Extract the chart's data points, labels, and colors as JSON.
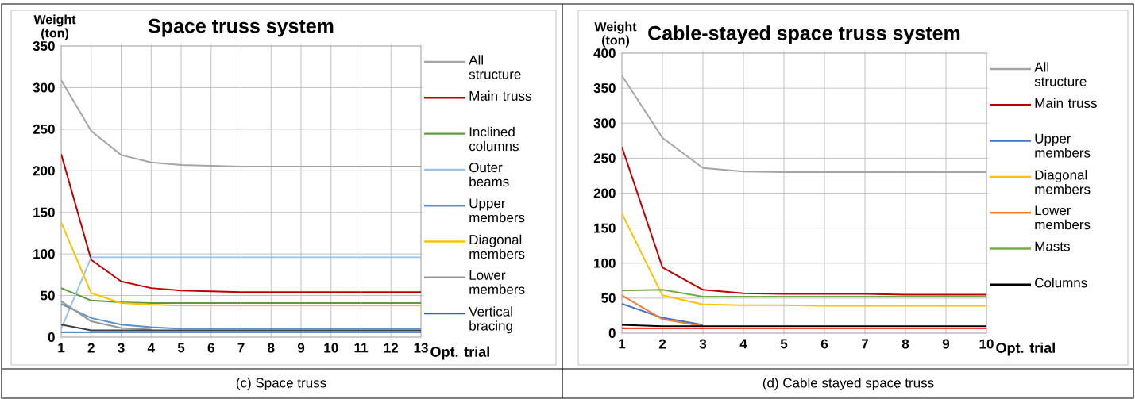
{
  "chart_data": [
    {
      "type": "line",
      "title": "Space truss system",
      "xlabel": "Opt. trial",
      "ylabel": "Weight (ton)",
      "annotations": [
        "(c) Space truss"
      ],
      "x": [
        1,
        2,
        3,
        4,
        5,
        6,
        7,
        8,
        9,
        10,
        11,
        12,
        13
      ],
      "xlim": [
        1,
        13
      ],
      "xticks": [
        1,
        2,
        3,
        4,
        5,
        6,
        7,
        8,
        9,
        10,
        11,
        12,
        13
      ],
      "ylim": [
        0,
        350
      ],
      "yticks": [
        0,
        50,
        100,
        150,
        200,
        250,
        300,
        350
      ],
      "grid": true,
      "legend": "right",
      "marker": "none",
      "line_style": "solid",
      "series": [
        {
          "name": "All structure",
          "color": "#a5a5a5",
          "values": [
            309,
            248,
            219,
            210,
            207,
            206,
            205,
            205,
            205,
            205,
            205,
            205,
            205
          ]
        },
        {
          "name": "Main truss",
          "color": "#c00000",
          "values": [
            220,
            93,
            67,
            59,
            56,
            55,
            54,
            54,
            54,
            54,
            54,
            54,
            54
          ]
        },
        {
          "name": "Inclined columns",
          "color": "#5b9b3b",
          "values": [
            59,
            44,
            42,
            41,
            41,
            41,
            41,
            41,
            41,
            41,
            41,
            41,
            41
          ]
        },
        {
          "name": "Outer beams",
          "color": "#9dc3e6",
          "values": [
            10,
            96,
            96,
            96,
            96,
            96,
            96,
            96,
            96,
            96,
            96,
            96,
            96
          ]
        },
        {
          "name": "Upper members",
          "color": "#5b8fc8",
          "values": [
            40,
            23,
            15,
            12,
            10,
            10,
            10,
            10,
            10,
            10,
            10,
            10,
            10
          ]
        },
        {
          "name": "Diagonal members",
          "color": "#ffc000",
          "values": [
            138,
            53,
            41,
            39,
            38,
            38,
            38,
            38,
            38,
            38,
            38,
            38,
            38
          ]
        },
        {
          "name": "Lower members",
          "color": "#969696",
          "values": [
            43,
            19,
            11,
            9,
            null,
            null,
            null,
            null,
            null,
            null,
            null,
            null,
            null
          ]
        },
        {
          "name": "Vertical bracing",
          "color": "#3a5fb0",
          "values": [
            6,
            6,
            6,
            6,
            6,
            6,
            6,
            6,
            6,
            6,
            6,
            6,
            6
          ]
        },
        {
          "color": "#404040",
          "values": [
            15,
            8,
            8,
            8,
            8,
            8,
            8,
            8,
            8,
            8,
            8,
            8,
            8
          ]
        }
      ]
    },
    {
      "type": "line",
      "title": "Cable-stayed space truss system",
      "xlabel": "Opt. trial",
      "ylabel": "Weight (ton)",
      "annotations": [
        "(d)    Cable stayed space truss"
      ],
      "x": [
        1,
        2,
        3,
        4,
        5,
        6,
        7,
        8,
        9,
        10
      ],
      "xlim": [
        1,
        10
      ],
      "xticks": [
        1,
        2,
        3,
        4,
        5,
        6,
        7,
        8,
        9,
        10
      ],
      "ylim": [
        0,
        400
      ],
      "yticks": [
        0,
        50,
        100,
        150,
        200,
        250,
        300,
        350,
        400
      ],
      "grid": true,
      "legend": "right",
      "marker": "none",
      "line_style": "solid",
      "series": [
        {
          "name": "All structure",
          "color": "#a5a5a5",
          "values": [
            368,
            279,
            236,
            231,
            230,
            230,
            230,
            230,
            230,
            230
          ]
        },
        {
          "name": "Main truss",
          "color": "#c00000",
          "values": [
            266,
            94,
            62,
            57,
            56,
            56,
            56,
            55,
            55,
            55
          ]
        },
        {
          "name": "Upper members",
          "color": "#4472c4",
          "values": [
            42,
            22,
            12,
            null,
            null,
            null,
            null,
            null,
            null,
            null
          ]
        },
        {
          "name": "Diagonal members",
          "color": "#ffc000",
          "values": [
            171,
            54,
            41,
            40,
            40,
            39,
            39,
            39,
            39,
            39
          ]
        },
        {
          "name": "Lower members",
          "color": "#ed7d31",
          "values": [
            54,
            20,
            10,
            null,
            null,
            null,
            null,
            null,
            null,
            null
          ]
        },
        {
          "name": "Masts",
          "color": "#70ad47",
          "values": [
            61,
            62,
            52,
            52,
            52,
            52,
            52,
            52,
            52,
            52
          ]
        },
        {
          "name": "Columns",
          "color": "#000000",
          "values": [
            12,
            10,
            10,
            10,
            10,
            10,
            10,
            10,
            10,
            10
          ]
        },
        {
          "color": "#ff0000",
          "values": [
            7,
            7,
            7,
            7,
            7,
            7,
            7,
            7,
            7,
            7
          ]
        }
      ]
    }
  ]
}
